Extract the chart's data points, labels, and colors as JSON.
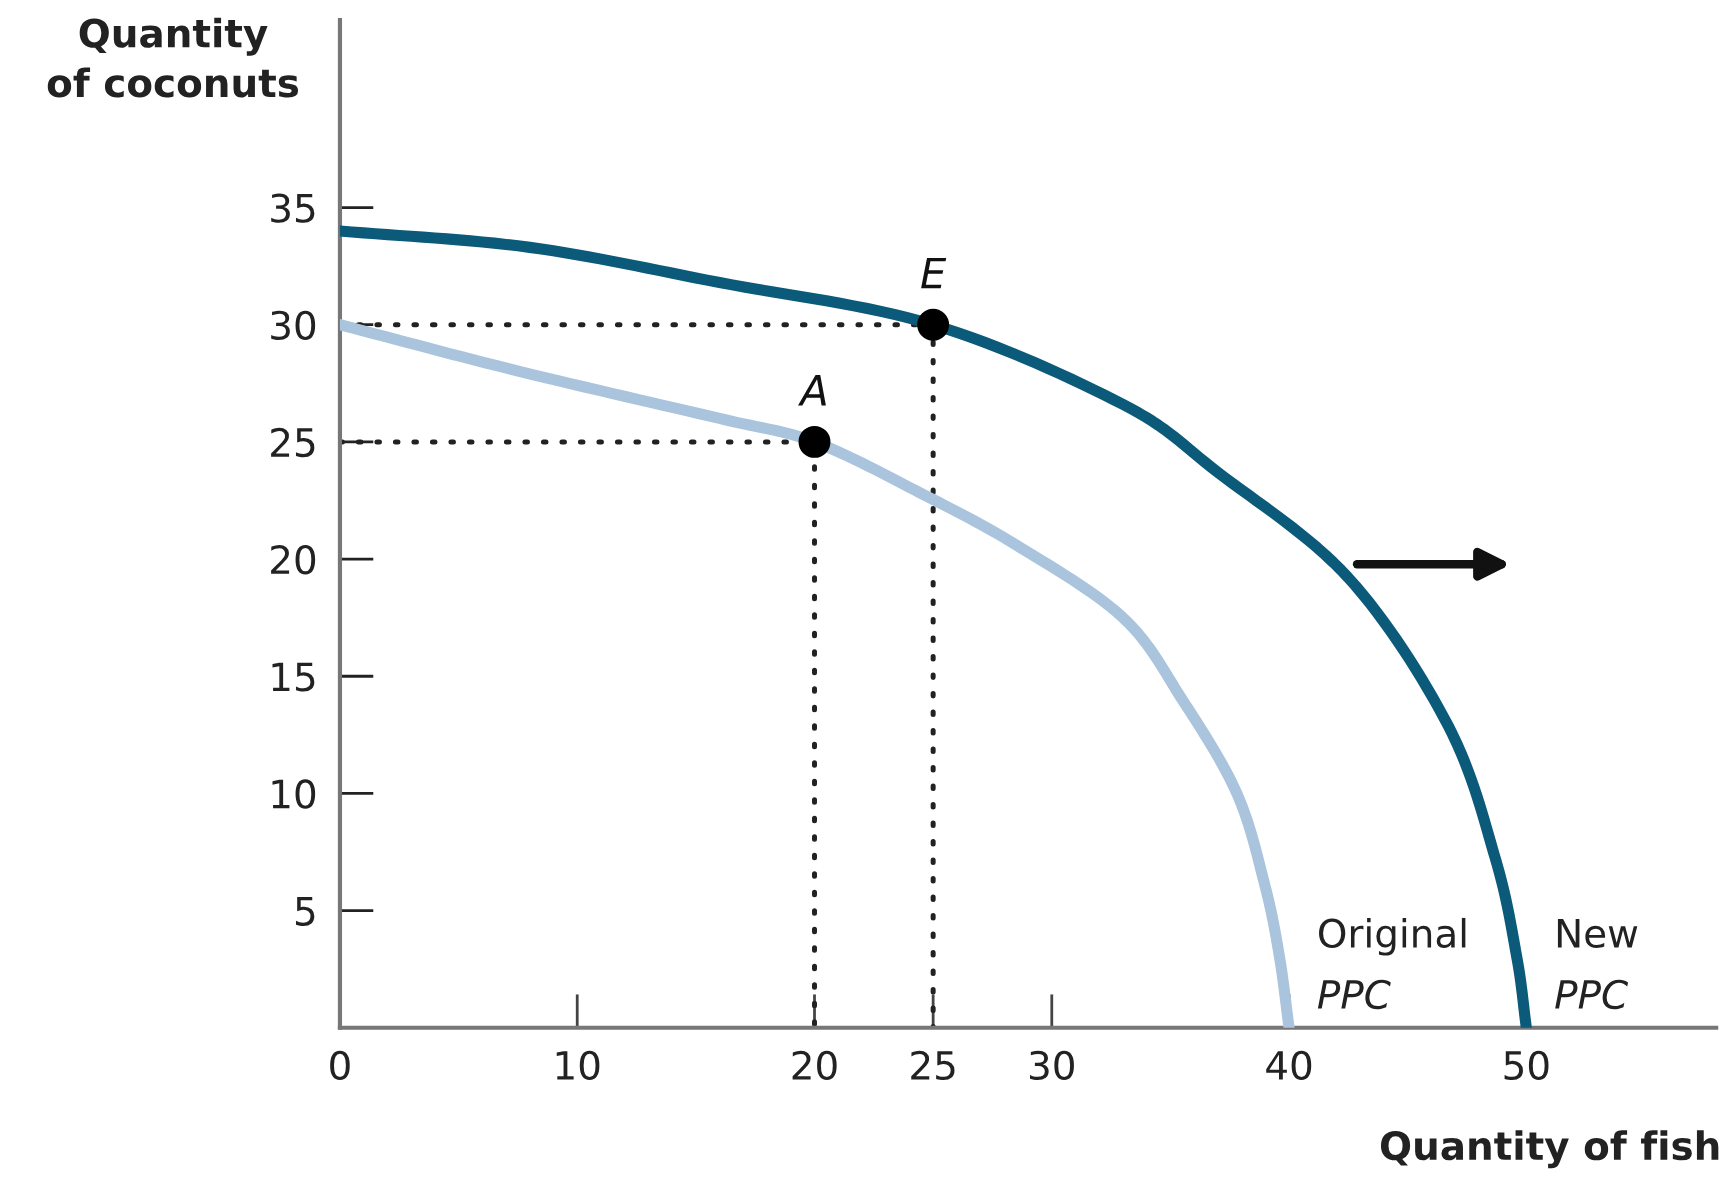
{
  "chart_data": {
    "type": "line",
    "xlabel": "Quantity of fish",
    "ylabel": "Quantity\nof coconuts",
    "xlim": [
      0,
      58
    ],
    "ylim": [
      0,
      43
    ],
    "xticks": [
      {
        "value": 0,
        "label": "0"
      },
      10,
      20,
      25,
      30,
      40,
      50
    ],
    "yticks": [
      5,
      10,
      15,
      20,
      25,
      30,
      35
    ],
    "grid": false,
    "marker": "none",
    "line_style": "solid",
    "series": [
      {
        "name": "Original PPC",
        "color": "#a9c4dc",
        "x": [
          0,
          7.6,
          16,
          20,
          24.5,
          28.5,
          33,
          35.5,
          37.8,
          39,
          39.6,
          40
        ],
        "values": [
          30,
          28,
          26,
          25,
          22.8,
          20.6,
          17.5,
          14,
          10,
          6,
          3,
          0
        ]
      },
      {
        "name": "New PPC",
        "color": "#0b5a7a",
        "x": [
          0,
          8,
          16,
          25,
          33,
          37,
          42.5,
          46.7,
          48.7,
          49.6,
          50
        ],
        "values": [
          34,
          33.3,
          31.8,
          30,
          26.6,
          23.7,
          19.2,
          12.9,
          7.2,
          3,
          0
        ]
      },
      {
        "color": "#222222",
        "line_style": "dotted",
        "x": [
          0,
          20,
          20
        ],
        "values": [
          25,
          25,
          0
        ]
      },
      {
        "color": "#222222",
        "line_style": "dotted",
        "x": [
          0,
          25,
          25
        ],
        "values": [
          30,
          30,
          0
        ]
      },
      {
        "color": "#000000",
        "type": "scatter",
        "marker": "circle",
        "x": [
          20,
          25
        ],
        "values": [
          25,
          30
        ]
      }
    ],
    "annotations": [
      {
        "text": "A",
        "x": 20,
        "y": 25
      },
      {
        "text": "E",
        "x": 25,
        "y": 30
      }
    ]
  }
}
